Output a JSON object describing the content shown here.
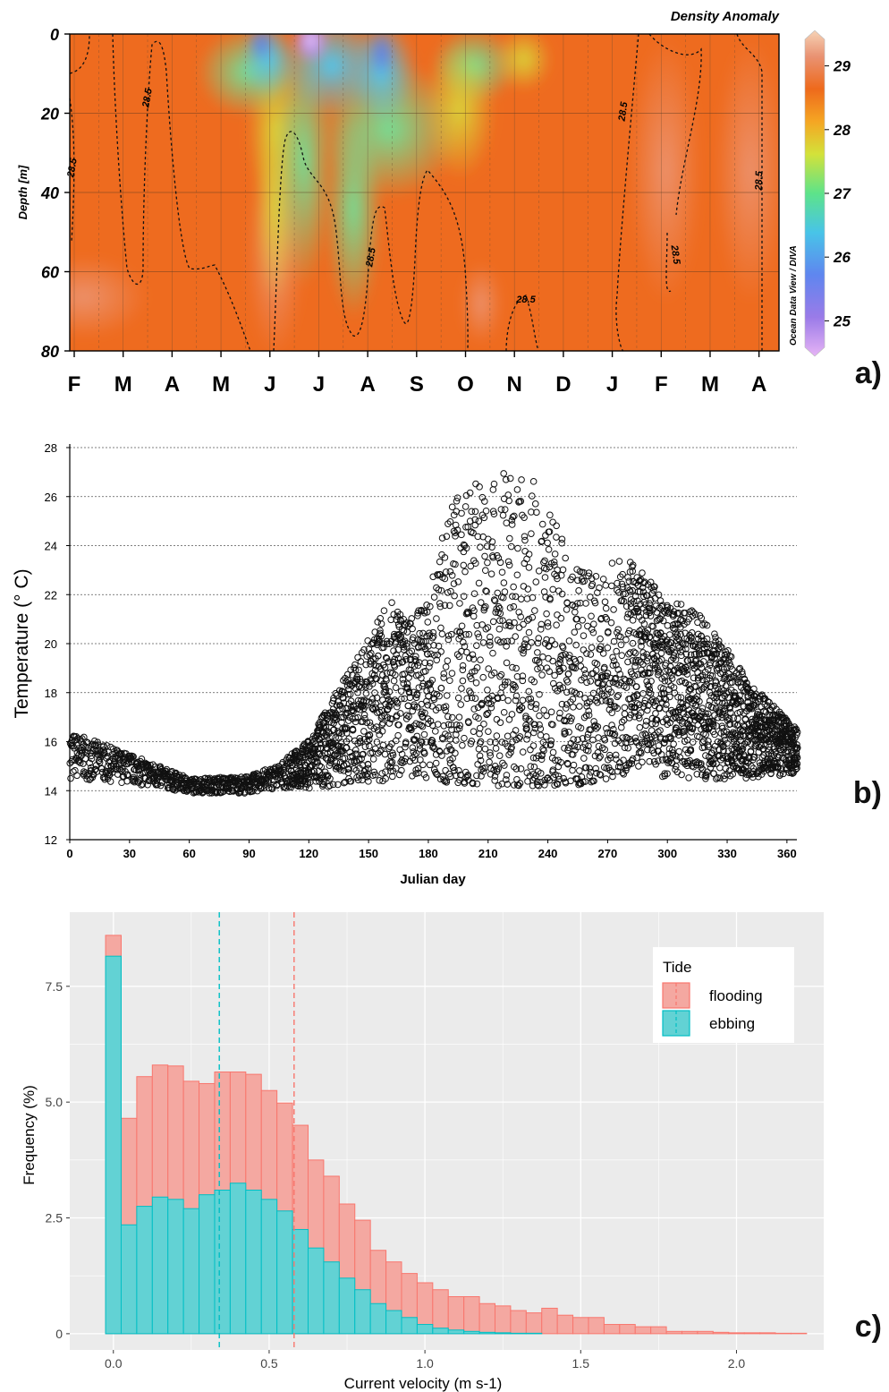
{
  "panel_labels": {
    "a": "a)",
    "b": "b)",
    "c": "c)"
  },
  "panel_a": {
    "title": "Density Anomaly",
    "ylabel": "Depth [m]",
    "colorbar_caption": "Ocean Data View / DIVA",
    "contour_label": "28.5"
  },
  "chart_data": [
    {
      "type": "heatmap",
      "title": "Density Anomaly",
      "ylabel": "Depth [m]",
      "xlabel": "",
      "y_ticks": [
        0,
        20,
        40,
        60,
        80
      ],
      "ylim": [
        80,
        0
      ],
      "x_ticks": [
        "F",
        "M",
        "A",
        "M",
        "J",
        "J",
        "A",
        "S",
        "O",
        "N",
        "D",
        "J",
        "F",
        "M",
        "A"
      ],
      "colorbar_ticks": [
        25,
        26,
        27,
        28,
        29
      ],
      "colorbar_range": [
        24.5,
        29.5
      ],
      "contour_level": 28.5,
      "grid": true
    },
    {
      "type": "scatter",
      "xlabel": "Julian day",
      "ylabel": "Temperature (° C)",
      "xlim": [
        0,
        365
      ],
      "ylim": [
        12,
        28
      ],
      "x_ticks": [
        0,
        30,
        60,
        90,
        120,
        150,
        180,
        210,
        240,
        270,
        300,
        330,
        360
      ],
      "y_ticks": [
        12,
        14,
        16,
        18,
        20,
        22,
        24,
        26,
        28
      ],
      "grid": "horizontal dotted",
      "envelope": [
        {
          "x": 0,
          "min": 14.5,
          "max": 16.4
        },
        {
          "x": 30,
          "min": 14.3,
          "max": 15.5
        },
        {
          "x": 60,
          "min": 13.9,
          "max": 14.5
        },
        {
          "x": 90,
          "min": 13.9,
          "max": 14.6
        },
        {
          "x": 105,
          "min": 14.1,
          "max": 15.1
        },
        {
          "x": 120,
          "min": 14.1,
          "max": 16.1
        },
        {
          "x": 135,
          "min": 14.2,
          "max": 18.3
        },
        {
          "x": 150,
          "min": 14.3,
          "max": 20.2
        },
        {
          "x": 160,
          "min": 14.4,
          "max": 21.8
        },
        {
          "x": 170,
          "min": 14.4,
          "max": 21.0
        },
        {
          "x": 180,
          "min": 14.5,
          "max": 22.0
        },
        {
          "x": 190,
          "min": 14.3,
          "max": 26.0
        },
        {
          "x": 215,
          "min": 14.2,
          "max": 27.0
        },
        {
          "x": 235,
          "min": 14.2,
          "max": 26.6
        },
        {
          "x": 255,
          "min": 14.2,
          "max": 23.0
        },
        {
          "x": 280,
          "min": 14.7,
          "max": 23.5
        },
        {
          "x": 300,
          "min": 14.5,
          "max": 21.9
        },
        {
          "x": 320,
          "min": 14.4,
          "max": 21.0
        },
        {
          "x": 340,
          "min": 14.5,
          "max": 18.5
        },
        {
          "x": 365,
          "min": 14.7,
          "max": 16.5
        }
      ]
    },
    {
      "type": "bar",
      "xlabel": "Current velocity (m s-1)",
      "ylabel": "Frequency (%)",
      "xlim": [
        -0.14,
        2.28
      ],
      "ylim": [
        -0.35,
        9.1
      ],
      "x_ticks": [
        0.0,
        0.5,
        1.0,
        1.5,
        2.0
      ],
      "y_ticks": [
        0,
        2.5,
        5.0,
        7.5
      ],
      "bin_width": 0.05,
      "legend_title": "Tide",
      "legend_position": "top-right",
      "series": [
        {
          "name": "flooding",
          "color": "#F8766D",
          "mean_line": 0.58,
          "values": [
            8.6,
            4.65,
            5.55,
            5.8,
            5.78,
            5.45,
            5.4,
            5.65,
            5.65,
            5.6,
            5.25,
            4.98,
            4.5,
            3.75,
            3.4,
            2.8,
            2.45,
            1.8,
            1.55,
            1.3,
            1.1,
            0.95,
            0.8,
            0.8,
            0.65,
            0.6,
            0.5,
            0.45,
            0.55,
            0.4,
            0.35,
            0.35,
            0.2,
            0.2,
            0.15,
            0.15,
            0.05,
            0.05,
            0.05,
            0.03,
            0.02,
            0.02,
            0.02,
            0.01,
            0.01
          ]
        },
        {
          "name": "ebbing",
          "color": "#00BFC4",
          "mean_line": 0.34,
          "values": [
            8.15,
            2.35,
            2.75,
            2.95,
            2.9,
            2.7,
            3.0,
            3.1,
            3.25,
            3.1,
            2.9,
            2.65,
            2.25,
            1.85,
            1.55,
            1.2,
            0.95,
            0.65,
            0.5,
            0.35,
            0.2,
            0.12,
            0.08,
            0.05,
            0.03,
            0.02,
            0.01,
            0.01,
            0,
            0,
            0,
            0,
            0,
            0,
            0,
            0,
            0,
            0,
            0,
            0,
            0,
            0,
            0,
            0,
            0
          ]
        }
      ]
    }
  ]
}
